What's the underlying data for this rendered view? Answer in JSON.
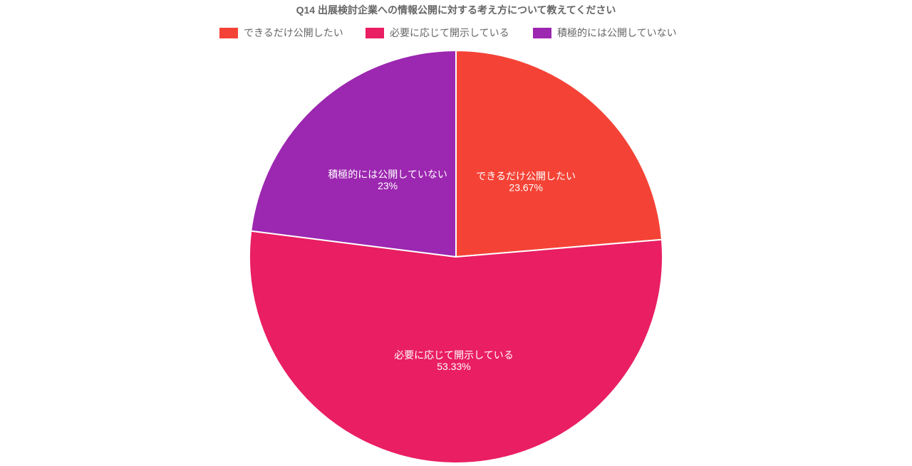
{
  "chart_data": {
    "type": "pie",
    "title": "Q14 出展検討企業への情報公開に対する考え方について教えてください",
    "legend_position": "top",
    "slices": [
      {
        "label": "できるだけ公開したい",
        "value": 23.67,
        "value_label": "23.67%",
        "color": "#F44336"
      },
      {
        "label": "必要に応じて開示している",
        "value": 53.33,
        "value_label": "53.33%",
        "color": "#E91E63"
      },
      {
        "label": "積極的には公開していない",
        "value": 23,
        "value_label": "23%",
        "color": "#9C27B0"
      }
    ]
  }
}
